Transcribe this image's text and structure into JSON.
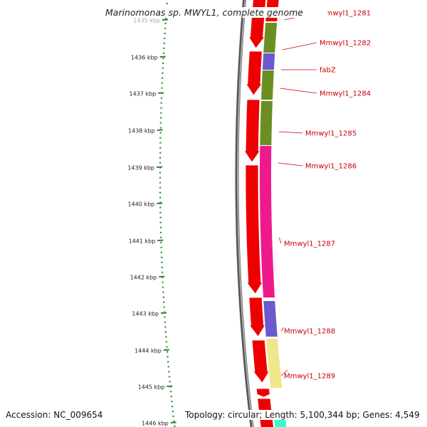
{
  "title": "Marinomonas sp. MWYL1, complete genome",
  "footer": {
    "accession": "Accession: NC_009654",
    "topology": "Topology: circular; Length: 5,100,344 bp; Genes: 4,549"
  },
  "ruler": [
    "1435 kbp",
    "1436 kbp",
    "1437 kbp",
    "1438 kbp",
    "1439 kbp",
    "1440 kbp",
    "1441 kbp",
    "1442 kbp",
    "1443 kbp",
    "1444 kbp",
    "1445 kbp",
    "1446 kbp"
  ],
  "gene_labels": [
    "Mmwyl1_1281",
    "Mmwyl1_1282",
    "fabZ",
    "Mmwyl1_1284",
    "Mmwyl1_1285",
    "Mmwyl1_1286",
    "Mmwyl1_1287",
    "Mmwyl1_1288",
    "Mmwyl1_1289"
  ],
  "colors": {
    "cds": "#ee0000",
    "label": "#cc0000",
    "backbone": "#888888",
    "ruler_dots": "#2a8a2a",
    "olive": "#6b8e23",
    "slate": "#6a5acd",
    "magenta": "#ee1a8c",
    "khaki": "#f0e68c",
    "aqua": "#33ffcc"
  }
}
